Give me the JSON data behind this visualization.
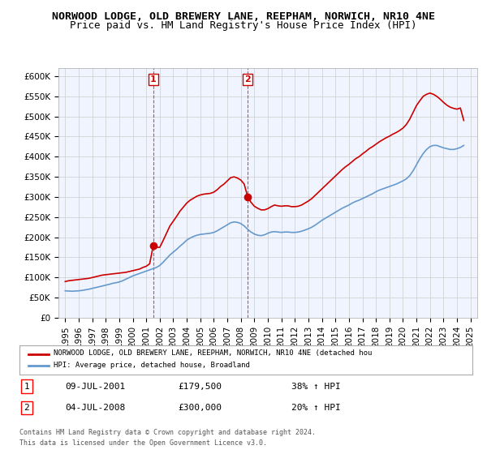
{
  "title": "NORWOOD LODGE, OLD BREWERY LANE, REEPHAM, NORWICH, NR10 4NE",
  "subtitle": "Price paid vs. HM Land Registry's House Price Index (HPI)",
  "legend_label_red": "NORWOOD LODGE, OLD BREWERY LANE, REEPHAM, NORWICH, NR10 4NE (detached hou",
  "legend_label_blue": "HPI: Average price, detached house, Broadland",
  "footer1": "Contains HM Land Registry data © Crown copyright and database right 2024.",
  "footer2": "This data is licensed under the Open Government Licence v3.0.",
  "transaction1_date": "09-JUL-2001",
  "transaction1_price": "£179,500",
  "transaction1_hpi": "38% ↑ HPI",
  "transaction2_date": "04-JUL-2008",
  "transaction2_price": "£300,000",
  "transaction2_hpi": "20% ↑ HPI",
  "vline1_x": 2001.52,
  "vline2_x": 2008.51,
  "marker1_x": 2001.52,
  "marker1_y": 179500,
  "marker2_x": 2008.51,
  "marker2_y": 300000,
  "ylim": [
    0,
    620000
  ],
  "xlim": [
    1994.5,
    2025.5
  ],
  "yticks": [
    0,
    50000,
    100000,
    150000,
    200000,
    250000,
    300000,
    350000,
    400000,
    450000,
    500000,
    550000,
    600000
  ],
  "xticks": [
    1995,
    1996,
    1997,
    1998,
    1999,
    2000,
    2001,
    2002,
    2003,
    2004,
    2005,
    2006,
    2007,
    2008,
    2009,
    2010,
    2011,
    2012,
    2013,
    2014,
    2015,
    2016,
    2017,
    2018,
    2019,
    2020,
    2021,
    2022,
    2023,
    2024,
    2025
  ],
  "bg_color": "#f0f4ff",
  "grid_color": "#cccccc",
  "red_color": "#cc0000",
  "blue_color": "#6699cc",
  "vline_color": "#cc0000",
  "title_fontsize": 9.5,
  "subtitle_fontsize": 9,
  "tick_fontsize": 7.5,
  "hpi_data_x": [
    1995.0,
    1995.25,
    1995.5,
    1995.75,
    1996.0,
    1996.25,
    1996.5,
    1996.75,
    1997.0,
    1997.25,
    1997.5,
    1997.75,
    1998.0,
    1998.25,
    1998.5,
    1998.75,
    1999.0,
    1999.25,
    1999.5,
    1999.75,
    2000.0,
    2000.25,
    2000.5,
    2000.75,
    2001.0,
    2001.25,
    2001.5,
    2001.75,
    2002.0,
    2002.25,
    2002.5,
    2002.75,
    2003.0,
    2003.25,
    2003.5,
    2003.75,
    2004.0,
    2004.25,
    2004.5,
    2004.75,
    2005.0,
    2005.25,
    2005.5,
    2005.75,
    2006.0,
    2006.25,
    2006.5,
    2006.75,
    2007.0,
    2007.25,
    2007.5,
    2007.75,
    2008.0,
    2008.25,
    2008.5,
    2008.75,
    2009.0,
    2009.25,
    2009.5,
    2009.75,
    2010.0,
    2010.25,
    2010.5,
    2010.75,
    2011.0,
    2011.25,
    2011.5,
    2011.75,
    2012.0,
    2012.25,
    2012.5,
    2012.75,
    2013.0,
    2013.25,
    2013.5,
    2013.75,
    2014.0,
    2014.25,
    2014.5,
    2014.75,
    2015.0,
    2015.25,
    2015.5,
    2015.75,
    2016.0,
    2016.25,
    2016.5,
    2016.75,
    2017.0,
    2017.25,
    2017.5,
    2017.75,
    2018.0,
    2018.25,
    2018.5,
    2018.75,
    2019.0,
    2019.25,
    2019.5,
    2019.75,
    2020.0,
    2020.25,
    2020.5,
    2020.75,
    2021.0,
    2021.25,
    2021.5,
    2021.75,
    2022.0,
    2022.25,
    2022.5,
    2022.75,
    2023.0,
    2023.25,
    2023.5,
    2023.75,
    2024.0,
    2024.25,
    2024.5
  ],
  "hpi_data_y": [
    67000,
    66500,
    66000,
    66500,
    67000,
    68000,
    69500,
    71000,
    73000,
    75000,
    77000,
    79000,
    81000,
    83000,
    85500,
    87000,
    89000,
    92000,
    96000,
    100000,
    104000,
    107000,
    110000,
    113000,
    116000,
    119000,
    122000,
    125000,
    130000,
    138000,
    147000,
    156000,
    163000,
    170000,
    178000,
    185000,
    193000,
    198000,
    202000,
    205000,
    207000,
    208000,
    209000,
    210000,
    212000,
    216000,
    221000,
    226000,
    231000,
    236000,
    238000,
    237000,
    234000,
    228000,
    220000,
    213000,
    208000,
    205000,
    204000,
    206000,
    210000,
    213000,
    214000,
    213000,
    212000,
    213000,
    213000,
    212000,
    212000,
    213000,
    215000,
    218000,
    221000,
    225000,
    230000,
    236000,
    242000,
    247000,
    252000,
    257000,
    262000,
    267000,
    272000,
    276000,
    280000,
    285000,
    289000,
    292000,
    296000,
    300000,
    304000,
    308000,
    313000,
    317000,
    320000,
    323000,
    326000,
    329000,
    332000,
    336000,
    340000,
    345000,
    353000,
    365000,
    380000,
    395000,
    408000,
    418000,
    425000,
    428000,
    428000,
    425000,
    422000,
    420000,
    418000,
    418000,
    420000,
    423000,
    428000
  ],
  "red_data_x": [
    1995.0,
    1995.25,
    1995.5,
    1995.75,
    1996.0,
    1996.25,
    1996.5,
    1996.75,
    1997.0,
    1997.25,
    1997.5,
    1997.75,
    1998.0,
    1998.25,
    1998.5,
    1998.75,
    1999.0,
    1999.25,
    1999.5,
    1999.75,
    2000.0,
    2000.25,
    2000.5,
    2000.75,
    2001.0,
    2001.25,
    2001.52,
    2001.75,
    2002.0,
    2002.25,
    2002.5,
    2002.75,
    2003.0,
    2003.25,
    2003.5,
    2003.75,
    2004.0,
    2004.25,
    2004.5,
    2004.75,
    2005.0,
    2005.25,
    2005.5,
    2005.75,
    2006.0,
    2006.25,
    2006.5,
    2006.75,
    2007.0,
    2007.25,
    2007.5,
    2007.75,
    2008.0,
    2008.25,
    2008.51,
    2008.75,
    2009.0,
    2009.25,
    2009.5,
    2009.75,
    2010.0,
    2010.25,
    2010.5,
    2010.75,
    2011.0,
    2011.25,
    2011.5,
    2011.75,
    2012.0,
    2012.25,
    2012.5,
    2012.75,
    2013.0,
    2013.25,
    2013.5,
    2013.75,
    2014.0,
    2014.25,
    2014.5,
    2014.75,
    2015.0,
    2015.25,
    2015.5,
    2015.75,
    2016.0,
    2016.25,
    2016.5,
    2016.75,
    2017.0,
    2017.25,
    2017.5,
    2017.75,
    2018.0,
    2018.25,
    2018.5,
    2018.75,
    2019.0,
    2019.25,
    2019.5,
    2019.75,
    2020.0,
    2020.25,
    2020.5,
    2020.75,
    2021.0,
    2021.25,
    2021.5,
    2021.75,
    2022.0,
    2022.25,
    2022.5,
    2022.75,
    2023.0,
    2023.25,
    2023.5,
    2023.75,
    2024.0,
    2024.25,
    2024.5
  ],
  "red_data_y": [
    90000,
    92000,
    93000,
    94000,
    95000,
    96000,
    97000,
    98000,
    100000,
    102000,
    104000,
    106000,
    107000,
    108000,
    109000,
    110000,
    111000,
    112000,
    113000,
    115000,
    117000,
    119000,
    121000,
    125000,
    128000,
    134000,
    179500,
    175000,
    175000,
    192000,
    210000,
    228000,
    240000,
    252000,
    265000,
    275000,
    285000,
    292000,
    297000,
    302000,
    305000,
    307000,
    308000,
    309000,
    312000,
    318000,
    326000,
    332000,
    340000,
    348000,
    350000,
    347000,
    342000,
    332000,
    300000,
    287000,
    277000,
    272000,
    268000,
    268000,
    271000,
    276000,
    280000,
    278000,
    277000,
    278000,
    278000,
    276000,
    276000,
    277000,
    280000,
    285000,
    290000,
    296000,
    304000,
    312000,
    320000,
    328000,
    336000,
    344000,
    352000,
    360000,
    368000,
    375000,
    381000,
    388000,
    395000,
    400000,
    407000,
    413000,
    420000,
    425000,
    431000,
    437000,
    442000,
    447000,
    451000,
    456000,
    460000,
    465000,
    471000,
    480000,
    493000,
    510000,
    527000,
    539000,
    550000,
    555000,
    558000,
    555000,
    550000,
    543000,
    535000,
    528000,
    523000,
    520000,
    518000,
    521000,
    490000
  ]
}
